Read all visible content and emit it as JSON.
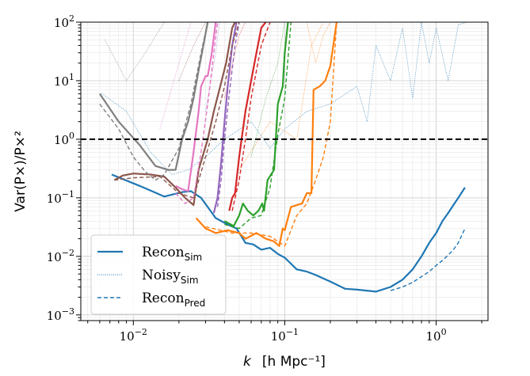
{
  "chart_data": {
    "type": "line",
    "xscale": "log",
    "yscale": "log",
    "xlim": [
      0.0045,
      2.2
    ],
    "ylim": [
      0.0008,
      100
    ],
    "xlabel_parts": {
      "k": "k",
      "unit": "[h Mpc⁻¹]"
    },
    "ylabel": "Var(P×)/P×²",
    "x_ticks": [
      {
        "base": "10",
        "exp": "−2",
        "value": 0.01
      },
      {
        "base": "10",
        "exp": "−1",
        "value": 0.1
      },
      {
        "base": "10",
        "exp": "0",
        "value": 1
      }
    ],
    "y_ticks": [
      {
        "base": "10",
        "exp": "−3",
        "value": 0.001
      },
      {
        "base": "10",
        "exp": "−2",
        "value": 0.01
      },
      {
        "base": "10",
        "exp": "−1",
        "value": 0.1
      },
      {
        "base": "10",
        "exp": "0",
        "value": 1
      },
      {
        "base": "10",
        "exp": "1",
        "value": 10
      },
      {
        "base": "10",
        "exp": "2",
        "value": 100
      }
    ],
    "grid": true,
    "reference_line": {
      "y": 1.0,
      "style": "dashed",
      "color": "#000000"
    },
    "legend": {
      "position": "lower-left",
      "entries": [
        {
          "base": "Recon",
          "sub": "Sim",
          "style": "solid"
        },
        {
          "base": "Noisy",
          "sub": "Sim",
          "style": "dotted"
        },
        {
          "base": "Recon",
          "sub": "Pred",
          "style": "dashed"
        }
      ]
    },
    "series": [
      {
        "color": "#1f77b4",
        "recon_sim": [
          [
            0.0072,
            0.25
          ],
          [
            0.011,
            0.16
          ],
          [
            0.016,
            0.105
          ],
          [
            0.021,
            0.125
          ],
          [
            0.024,
            0.13
          ],
          [
            0.028,
            0.1
          ],
          [
            0.035,
            0.045
          ],
          [
            0.042,
            0.035
          ],
          [
            0.048,
            0.03
          ],
          [
            0.055,
            0.017
          ],
          [
            0.062,
            0.016
          ],
          [
            0.07,
            0.013
          ],
          [
            0.08,
            0.014
          ],
          [
            0.09,
            0.011
          ],
          [
            0.1,
            0.0095
          ],
          [
            0.12,
            0.006
          ],
          [
            0.14,
            0.0055
          ],
          [
            0.16,
            0.0048
          ],
          [
            0.2,
            0.0037
          ],
          [
            0.25,
            0.0028
          ],
          [
            0.3,
            0.0027
          ],
          [
            0.4,
            0.0025
          ],
          [
            0.5,
            0.003
          ],
          [
            0.6,
            0.004
          ],
          [
            0.7,
            0.006
          ],
          [
            0.8,
            0.01
          ],
          [
            0.9,
            0.017
          ],
          [
            1.0,
            0.025
          ],
          [
            1.1,
            0.04
          ],
          [
            1.2,
            0.055
          ],
          [
            1.3,
            0.075
          ],
          [
            1.4,
            0.1
          ],
          [
            1.55,
            0.15
          ]
        ],
        "recon_pred": [
          [
            0.5,
            0.0026
          ],
          [
            0.6,
            0.003
          ],
          [
            0.7,
            0.0036
          ],
          [
            0.8,
            0.0045
          ],
          [
            0.9,
            0.0055
          ],
          [
            1.0,
            0.007
          ],
          [
            1.1,
            0.0085
          ],
          [
            1.2,
            0.0105
          ],
          [
            1.3,
            0.013
          ],
          [
            1.4,
            0.017
          ],
          [
            1.55,
            0.03
          ]
        ],
        "noisy_sim": [
          [
            0.0062,
            6
          ],
          [
            0.009,
            3
          ],
          [
            0.013,
            0.6
          ],
          [
            0.018,
            0.25
          ],
          [
            0.023,
            0.3
          ],
          [
            0.03,
            0.5
          ],
          [
            0.04,
            1
          ],
          [
            0.06,
            2
          ],
          [
            0.08,
            0.7
          ],
          [
            0.1,
            1.5
          ],
          [
            0.14,
            3
          ],
          [
            0.2,
            4
          ],
          [
            0.3,
            8
          ],
          [
            0.35,
            2
          ],
          [
            0.4,
            40
          ],
          [
            0.5,
            10
          ],
          [
            0.6,
            80
          ],
          [
            0.7,
            5
          ],
          [
            0.8,
            100
          ],
          [
            0.9,
            20
          ],
          [
            1.0,
            80
          ],
          [
            1.2,
            10
          ],
          [
            1.4,
            90
          ],
          [
            1.6,
            100
          ]
        ]
      },
      {
        "color": "#ff7f0e",
        "recon_sim": [
          [
            0.026,
            0.045
          ],
          [
            0.03,
            0.03
          ],
          [
            0.035,
            0.025
          ],
          [
            0.042,
            0.028
          ],
          [
            0.05,
            0.025
          ],
          [
            0.055,
            0.02
          ],
          [
            0.065,
            0.025
          ],
          [
            0.075,
            0.02
          ],
          [
            0.085,
            0.018
          ],
          [
            0.092,
            0.015
          ],
          [
            0.097,
            0.03
          ],
          [
            0.1,
            0.028
          ],
          [
            0.11,
            0.07
          ],
          [
            0.13,
            0.08
          ],
          [
            0.14,
            0.12
          ],
          [
            0.15,
            0.12
          ],
          [
            0.155,
            7
          ],
          [
            0.17,
            8
          ],
          [
            0.185,
            10
          ],
          [
            0.2,
            18
          ],
          [
            0.22,
            100
          ]
        ],
        "recon_pred": [
          [
            0.03,
            0.032
          ],
          [
            0.045,
            0.025
          ],
          [
            0.06,
            0.025
          ],
          [
            0.08,
            0.022
          ],
          [
            0.1,
            0.015
          ],
          [
            0.12,
            0.05
          ],
          [
            0.14,
            0.08
          ],
          [
            0.16,
            0.2
          ],
          [
            0.18,
            0.5
          ],
          [
            0.2,
            2
          ],
          [
            0.22,
            100
          ]
        ],
        "noisy_sim": [
          [
            0.05,
            0.3
          ],
          [
            0.08,
            2
          ],
          [
            0.12,
            1
          ],
          [
            0.15,
            40
          ],
          [
            0.18,
            100
          ]
        ]
      },
      {
        "color": "#2ca02c",
        "recon_sim": [
          [
            0.04,
            0.04
          ],
          [
            0.046,
            0.033
          ],
          [
            0.05,
            0.05
          ],
          [
            0.053,
            0.08
          ],
          [
            0.057,
            0.06
          ],
          [
            0.062,
            0.05
          ],
          [
            0.067,
            0.06
          ],
          [
            0.071,
            0.08
          ],
          [
            0.073,
            0.06
          ],
          [
            0.077,
            0.2
          ],
          [
            0.085,
            0.3
          ],
          [
            0.09,
            4
          ],
          [
            0.097,
            8
          ],
          [
            0.1,
            30
          ],
          [
            0.105,
            100
          ]
        ],
        "recon_pred": [
          [
            0.04,
            0.035
          ],
          [
            0.05,
            0.03
          ],
          [
            0.06,
            0.045
          ],
          [
            0.07,
            0.05
          ],
          [
            0.08,
            0.15
          ],
          [
            0.09,
            1.2
          ],
          [
            0.1,
            5
          ],
          [
            0.11,
            100
          ]
        ],
        "noisy_sim": [
          [
            0.06,
            0.5
          ],
          [
            0.075,
            5
          ],
          [
            0.09,
            20
          ],
          [
            0.1,
            100
          ]
        ]
      },
      {
        "color": "#d62728",
        "recon_sim": [
          [
            0.043,
            0.06
          ],
          [
            0.045,
            0.1
          ],
          [
            0.047,
            0.12
          ],
          [
            0.05,
            0.5
          ],
          [
            0.055,
            3
          ],
          [
            0.06,
            10
          ],
          [
            0.065,
            30
          ],
          [
            0.07,
            80
          ],
          [
            0.075,
            100
          ]
        ],
        "recon_pred": [
          [
            0.045,
            0.06
          ],
          [
            0.05,
            0.2
          ],
          [
            0.055,
            1
          ],
          [
            0.06,
            5
          ],
          [
            0.07,
            40
          ],
          [
            0.08,
            100
          ]
        ],
        "noisy_sim": [
          [
            0.04,
            5
          ],
          [
            0.05,
            60
          ],
          [
            0.055,
            100
          ]
        ]
      },
      {
        "color": "#9467bd",
        "recon_sim": [
          [
            0.034,
            0.055
          ],
          [
            0.036,
            0.1
          ],
          [
            0.038,
            0.4
          ],
          [
            0.04,
            2
          ],
          [
            0.042,
            8
          ],
          [
            0.045,
            40
          ],
          [
            0.048,
            100
          ]
        ],
        "recon_pred": [
          [
            0.036,
            0.07
          ],
          [
            0.038,
            0.2
          ],
          [
            0.04,
            1
          ],
          [
            0.043,
            6
          ],
          [
            0.047,
            40
          ],
          [
            0.05,
            100
          ]
        ],
        "noisy_sim": [
          [
            0.03,
            3
          ],
          [
            0.035,
            30
          ],
          [
            0.037,
            100
          ]
        ]
      },
      {
        "color": "#8c564b",
        "recon_sim": [
          [
            0.0075,
            0.2
          ],
          [
            0.0085,
            0.24
          ],
          [
            0.01,
            0.26
          ],
          [
            0.013,
            0.25
          ],
          [
            0.016,
            0.23
          ],
          [
            0.019,
            0.15
          ],
          [
            0.02,
            0.13
          ],
          [
            0.022,
            0.1
          ],
          [
            0.025,
            0.075
          ],
          [
            0.027,
            0.3
          ],
          [
            0.031,
            1
          ],
          [
            0.034,
            3
          ],
          [
            0.037,
            7
          ],
          [
            0.041,
            20
          ],
          [
            0.045,
            80
          ],
          [
            0.047,
            100
          ]
        ],
        "recon_pred": [
          [
            0.0075,
            0.2
          ],
          [
            0.01,
            0.22
          ],
          [
            0.015,
            0.23
          ],
          [
            0.02,
            0.12
          ],
          [
            0.025,
            0.1
          ],
          [
            0.03,
            0.5
          ],
          [
            0.035,
            2
          ],
          [
            0.04,
            8
          ],
          [
            0.045,
            40
          ],
          [
            0.05,
            100
          ]
        ],
        "noisy_sim": [
          [
            0.02,
            10
          ],
          [
            0.025,
            40
          ],
          [
            0.03,
            100
          ]
        ]
      },
      {
        "color": "#e377c2",
        "recon_sim": [
          [
            0.019,
            0.16
          ],
          [
            0.021,
            0.14
          ],
          [
            0.023,
            0.13
          ],
          [
            0.025,
            0.6
          ],
          [
            0.027,
            3
          ],
          [
            0.028,
            8
          ],
          [
            0.03,
            12
          ],
          [
            0.031,
            12
          ],
          [
            0.033,
            30
          ],
          [
            0.035,
            100
          ]
        ],
        "recon_pred": [
          [
            0.019,
            0.12
          ],
          [
            0.022,
            0.08
          ],
          [
            0.025,
            0.1
          ],
          [
            0.028,
            0.6
          ],
          [
            0.031,
            4
          ],
          [
            0.034,
            30
          ],
          [
            0.036,
            100
          ]
        ],
        "noisy_sim": [
          [
            0.015,
            1.5
          ],
          [
            0.02,
            20
          ],
          [
            0.024,
            100
          ]
        ]
      },
      {
        "color": "#7f7f7f",
        "recon_sim": [
          [
            0.006,
            6
          ],
          [
            0.008,
            2
          ],
          [
            0.011,
            0.8
          ],
          [
            0.014,
            0.35
          ],
          [
            0.017,
            0.3
          ],
          [
            0.019,
            0.3
          ],
          [
            0.021,
            1
          ],
          [
            0.023,
            2
          ],
          [
            0.025,
            5
          ],
          [
            0.027,
            15
          ],
          [
            0.029,
            40
          ],
          [
            0.031,
            100
          ]
        ],
        "recon_pred": [
          [
            0.006,
            4
          ],
          [
            0.008,
            1.5
          ],
          [
            0.01,
            0.5
          ],
          [
            0.012,
            0.28
          ],
          [
            0.014,
            0.2
          ],
          [
            0.016,
            0.25
          ],
          [
            0.02,
            0.7
          ],
          [
            0.024,
            4
          ],
          [
            0.028,
            30
          ],
          [
            0.031,
            100
          ]
        ],
        "noisy_sim": [
          [
            0.0065,
            50
          ],
          [
            0.009,
            10
          ],
          [
            0.012,
            30
          ],
          [
            0.016,
            100
          ]
        ]
      },
      {
        "color": "#ff7f0e",
        "recon_sim": [],
        "recon_pred": [],
        "noisy_sim": [
          [
            0.14,
            100
          ],
          [
            0.16,
            20
          ],
          [
            0.18,
            60
          ],
          [
            0.2,
            100
          ]
        ]
      }
    ]
  }
}
